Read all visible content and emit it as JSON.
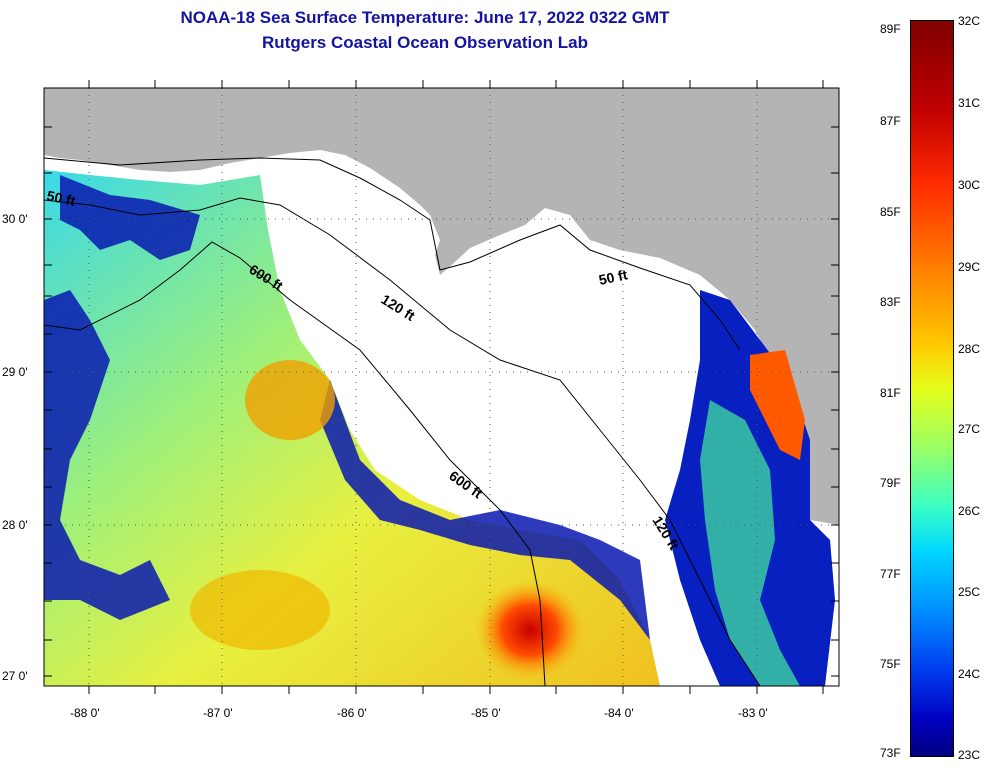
{
  "title": {
    "line1": "NOAA-18 Sea Surface Temperature:  June 17, 2022 0322 GMT",
    "line2": "Rutgers Coastal Ocean Observation Lab"
  },
  "map": {
    "lat_labels": [
      "30 0'",
      "29 0'",
      "28 0'",
      "27 0'"
    ],
    "lon_labels": [
      "-88 0'",
      "-87 0'",
      "-86 0'",
      "-85 0'",
      "-84 0'",
      "-83 0'"
    ],
    "isobath_labels": [
      "50 ft",
      "600 ft",
      "120 ft",
      "50 ft",
      "600 ft",
      "120 ft"
    ],
    "colors": {
      "land": "#b4b4b4",
      "cloud": "#ffffff",
      "warm": "#ff5a00",
      "cool": "#0010a0",
      "mid": "#c8ff40"
    }
  },
  "colorbar": {
    "fahrenheit": [
      "89F",
      "87F",
      "85F",
      "83F",
      "81F",
      "79F",
      "77F",
      "75F",
      "73F"
    ],
    "celsius": [
      "32C",
      "31C",
      "30C",
      "29C",
      "28C",
      "27C",
      "26C",
      "25C",
      "24C",
      "23C"
    ]
  }
}
